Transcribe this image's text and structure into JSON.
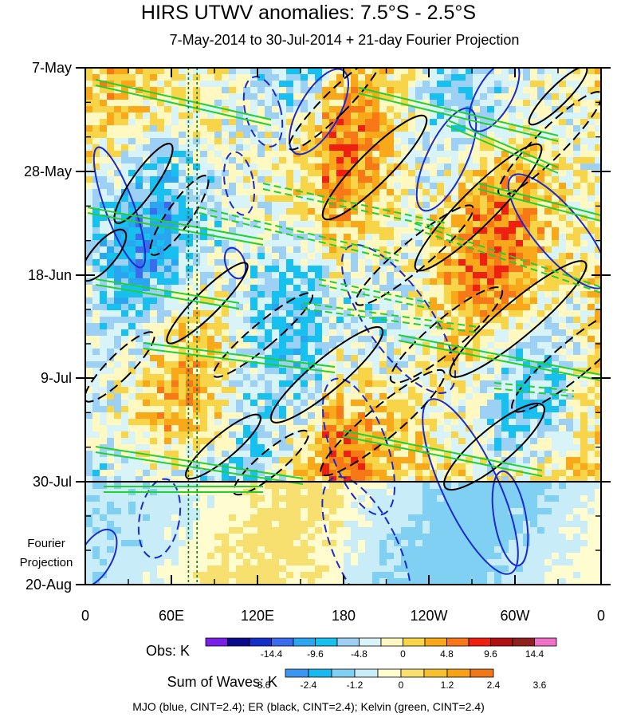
{
  "chart_data": {
    "type": "heatmap",
    "title": "HIRS UTWV anomalies: 7.5°S - 2.5°S",
    "subtitle": "7-May-2014 to 30-Jul-2014 + 21-day Fourier Projection",
    "y_tick_labels": [
      "7-May",
      "28-May",
      "18-Jun",
      "9-Jul",
      "30-Jul",
      "20-Aug"
    ],
    "y_extra_label": [
      "Fourier",
      "Projection"
    ],
    "x_tick_labels": [
      "0",
      "60E",
      "120E",
      "180",
      "120W",
      "60W",
      "0"
    ],
    "x_range_deg_east": [
      0,
      360
    ],
    "obs_colorbar": {
      "title": "Obs: K",
      "tick_labels": [
        "-14.4",
        "-9.6",
        "-4.8",
        "0",
        "4.8",
        "9.6",
        "14.4"
      ],
      "colors": [
        "#7a1fe8",
        "#0a0a8c",
        "#1430c8",
        "#3a6cf0",
        "#2aa6f0",
        "#18c0f0",
        "#9cd0f4",
        "#d8f4f8",
        "#fff8c0",
        "#f8d448",
        "#f8a818",
        "#f87818",
        "#f02010",
        "#b01010",
        "#902020",
        "#f070c8"
      ]
    },
    "waves_colorbar": {
      "title": "Sum of Waves: K",
      "tick_labels": [
        "-3.6",
        "-2.4",
        "-1.2",
        "0",
        "1.2",
        "2.4",
        "3.6"
      ],
      "colors": [
        "#3c96f0",
        "#18b8f0",
        "#80d0f4",
        "#c8ecf8",
        "#fffcd0",
        "#f8e070",
        "#f8c030",
        "#f8a018",
        "#f07818"
      ]
    },
    "legend": "MJO (blue, CINT=2.4); ER (black, CINT=2.4); Kelvin (green, CINT=2.4)",
    "series": [
      {
        "name": "MJO",
        "color": "#1a2ad0"
      },
      {
        "name": "ER",
        "color": "#000000"
      },
      {
        "name": "Kelvin",
        "color": "#22d030"
      }
    ],
    "reference_lines_deg_east": [
      72,
      78
    ]
  }
}
